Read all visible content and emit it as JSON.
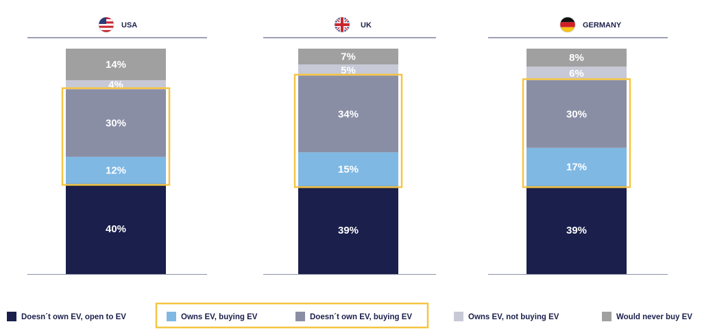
{
  "chart_data": {
    "type": "bar",
    "stacked": true,
    "categories": [
      "USA",
      "UK",
      "GERMANY"
    ],
    "series": [
      {
        "name": "Doesn´t own EV, open to EV",
        "color": "#1a1f4b",
        "values": [
          40,
          39,
          39
        ],
        "labels": [
          "40%",
          "39%",
          "39%"
        ]
      },
      {
        "name": "Owns EV, buying EV",
        "color": "#7fb8e3",
        "values": [
          12,
          15,
          17
        ],
        "labels": [
          "12%",
          "15%",
          "17%"
        ]
      },
      {
        "name": "Doesn´t own EV, buying EV",
        "color": "#8a8ea5",
        "values": [
          30,
          34,
          30
        ],
        "labels": [
          "30%",
          "34%",
          "30%"
        ]
      },
      {
        "name": "Owns EV, not buying EV",
        "color": "#c7c9d6",
        "values": [
          4,
          5,
          6
        ],
        "labels": [
          "4%",
          "5%",
          "6%"
        ]
      },
      {
        "name": "Would never buy EV",
        "color": "#a0a0a0",
        "values": [
          14,
          7,
          8
        ],
        "labels": [
          "14%",
          "7%",
          "8%"
        ]
      }
    ],
    "highlighted_series": [
      "Owns EV, buying EV",
      "Doesn´t own EV, buying EV"
    ],
    "highlight_color": "#f5c542",
    "label_colors": {
      "light": "#ffffff",
      "dark": "#ffffff"
    },
    "flag_icons": [
      "usa-flag-icon",
      "uk-flag-icon",
      "germany-flag-icon"
    ],
    "legend_position": "bottom"
  }
}
